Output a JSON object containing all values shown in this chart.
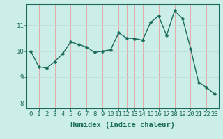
{
  "x": [
    0,
    1,
    2,
    3,
    4,
    5,
    6,
    7,
    8,
    9,
    10,
    11,
    12,
    13,
    14,
    15,
    16,
    17,
    18,
    19,
    20,
    21,
    22,
    23
  ],
  "y": [
    10.0,
    9.4,
    9.35,
    9.6,
    9.9,
    10.35,
    10.25,
    10.15,
    9.95,
    10.0,
    10.05,
    10.7,
    10.5,
    10.48,
    10.42,
    11.1,
    11.35,
    10.6,
    11.55,
    11.25,
    10.1,
    8.8,
    8.6,
    8.35
  ],
  "line_color": "#1a6b5a",
  "marker": "D",
  "marker_size": 2.5,
  "bg_color": "#cceee8",
  "grid_color_v": "#e8a0a0",
  "grid_color_h": "#c0dcd8",
  "xlabel": "Humidex (Indice chaleur)",
  "xlim": [
    -0.5,
    23.5
  ],
  "ylim": [
    7.8,
    11.8
  ],
  "yticks": [
    8,
    9,
    10,
    11
  ],
  "xticks": [
    0,
    1,
    2,
    3,
    4,
    5,
    6,
    7,
    8,
    9,
    10,
    11,
    12,
    13,
    14,
    15,
    16,
    17,
    18,
    19,
    20,
    21,
    22,
    23
  ],
  "tick_label_fontsize": 6.5,
  "xlabel_fontsize": 7.5
}
